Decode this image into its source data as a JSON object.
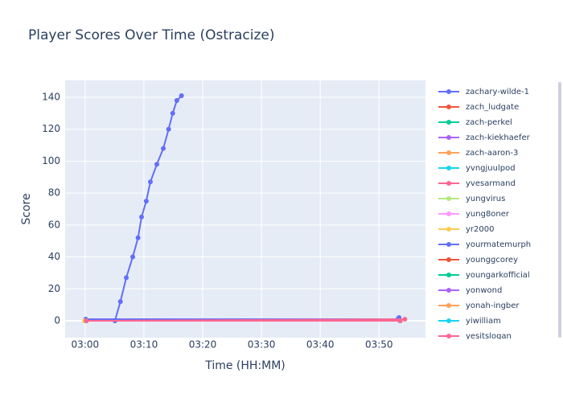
{
  "chart_data": {
    "type": "line",
    "title": "Player Scores Over Time (Ostracize)",
    "x_label": "Time (HH:MM)",
    "y_label": "Score",
    "xlim": [
      176.6,
      237.9
    ],
    "ylim": [
      -10.6,
      150.6
    ],
    "xticks": [
      {
        "value": 180,
        "label": "03:00"
      },
      {
        "value": 190,
        "label": "03:10"
      },
      {
        "value": 200,
        "label": "03:20"
      },
      {
        "value": 210,
        "label": "03:30"
      },
      {
        "value": 220,
        "label": "03:40"
      },
      {
        "value": 230,
        "label": "03:50"
      }
    ],
    "yticks": [
      0,
      20,
      40,
      60,
      80,
      100,
      120,
      140
    ],
    "grid": true,
    "legend": "right",
    "series": [
      {
        "name": "zachary-wilde-1",
        "color": "#636efa",
        "x": [
          180.1,
          233.2,
          233.4
        ],
        "values": [
          1,
          1,
          2
        ]
      },
      {
        "name": "zach_ludgate",
        "color": "#EF553B",
        "x": [
          180.2,
          233.6
        ],
        "values": [
          0,
          0
        ]
      },
      {
        "name": "zach-perkel",
        "color": "#00cc96",
        "x": [
          180.2,
          233.6
        ],
        "values": [
          0,
          0
        ]
      },
      {
        "name": "zach-kiekhaefer",
        "color": "#ab63fa",
        "x": [
          180.2,
          233.6
        ],
        "values": [
          0,
          0
        ]
      },
      {
        "name": "zach-aaron-3",
        "color": "#FFA15A",
        "x": [
          180.0,
          233.6
        ],
        "values": [
          0,
          0
        ]
      },
      {
        "name": "yvngjuulpod",
        "color": "#19d3f3",
        "x": [
          180.2,
          233.6
        ],
        "values": [
          0,
          0
        ]
      },
      {
        "name": "yvesarmand",
        "color": "#FF6692",
        "x": [
          180.1,
          234.4
        ],
        "values": [
          0,
          1
        ]
      },
      {
        "name": "yungvirus",
        "color": "#B6E880",
        "x": [
          180.2,
          233.6
        ],
        "values": [
          0,
          0
        ]
      },
      {
        "name": "yung8oner",
        "color": "#FF97FF",
        "x": [
          180.2,
          233.6
        ],
        "values": [
          0,
          0
        ]
      },
      {
        "name": "yr2000",
        "color": "#FECB52",
        "x": [
          179.9
        ],
        "values": [
          0
        ]
      },
      {
        "name": "yourmatemurph",
        "color": "#636efa",
        "x": [
          185.07,
          186.0,
          187.0,
          188.1,
          189.0,
          189.6,
          190.4,
          191.1,
          192.2,
          193.3,
          194.2,
          194.9,
          195.6,
          196.4
        ],
        "values": [
          0,
          12,
          27,
          40,
          52,
          65,
          75,
          87,
          98,
          108,
          120,
          130,
          138,
          141
        ]
      },
      {
        "name": "younggcorey",
        "color": "#EF553B",
        "x": [
          180.2,
          233.6
        ],
        "values": [
          0,
          0
        ]
      },
      {
        "name": "youngarkofficial",
        "color": "#00cc96",
        "x": [
          180.2,
          233.6
        ],
        "values": [
          0,
          0
        ]
      },
      {
        "name": "yonwond",
        "color": "#ab63fa",
        "x": [
          180.2,
          233.6
        ],
        "values": [
          0,
          0
        ]
      },
      {
        "name": "yonah-ingber",
        "color": "#FFA15A",
        "x": [
          180.2,
          233.6
        ],
        "values": [
          0,
          0
        ]
      },
      {
        "name": "yiwilliam",
        "color": "#19d3f3",
        "x": [
          180.2,
          233.6
        ],
        "values": [
          0,
          0
        ]
      },
      {
        "name": "yesitslogan",
        "color": "#FF6692",
        "x": [
          180.2,
          233.6
        ],
        "values": [
          0,
          0
        ]
      }
    ]
  }
}
